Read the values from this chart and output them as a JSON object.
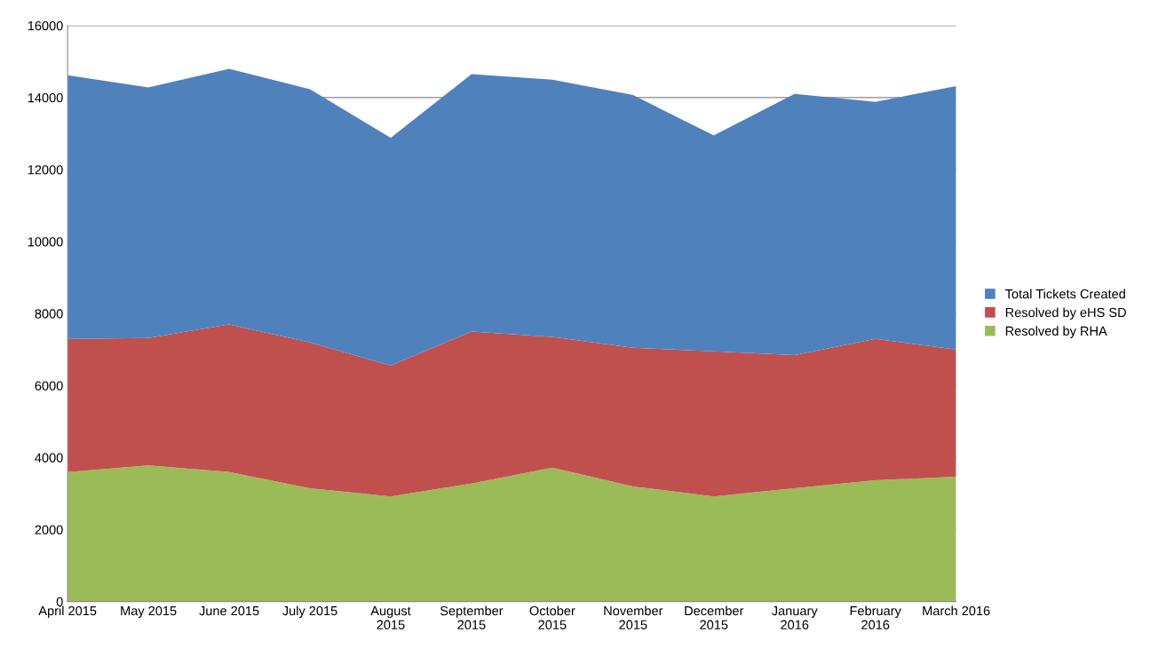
{
  "chart_data": {
    "type": "area",
    "stacked": true,
    "categories": [
      "April 2015",
      "May 2015",
      "June 2015",
      "July 2015",
      "August\n2015",
      "September\n2015",
      "October\n2015",
      "November\n2015",
      "December\n2015",
      "January\n2016",
      "February\n2016",
      "March 2016"
    ],
    "series": [
      {
        "name": "Resolved by RHA",
        "color": "#9bbb59",
        "values": [
          3600,
          3780,
          3600,
          3150,
          2920,
          3280,
          3720,
          3200,
          2920,
          3150,
          3370,
          3470
        ]
      },
      {
        "name": "Resolved by eHS SD",
        "color": "#c0504d",
        "values": [
          3700,
          3540,
          4100,
          4050,
          3640,
          4220,
          3630,
          3850,
          4030,
          3700,
          3930,
          3530
        ]
      },
      {
        "name": "Total Tickets Created",
        "color": "#4f81bd",
        "values": [
          7320,
          6960,
          7100,
          7030,
          6320,
          7150,
          7150,
          7020,
          6000,
          7250,
          6580,
          7320
        ]
      }
    ],
    "ylim": [
      0,
      16000
    ],
    "yticks": [
      0,
      2000,
      4000,
      6000,
      8000,
      10000,
      12000,
      14000,
      16000
    ],
    "grid": "y",
    "legend": "right"
  }
}
